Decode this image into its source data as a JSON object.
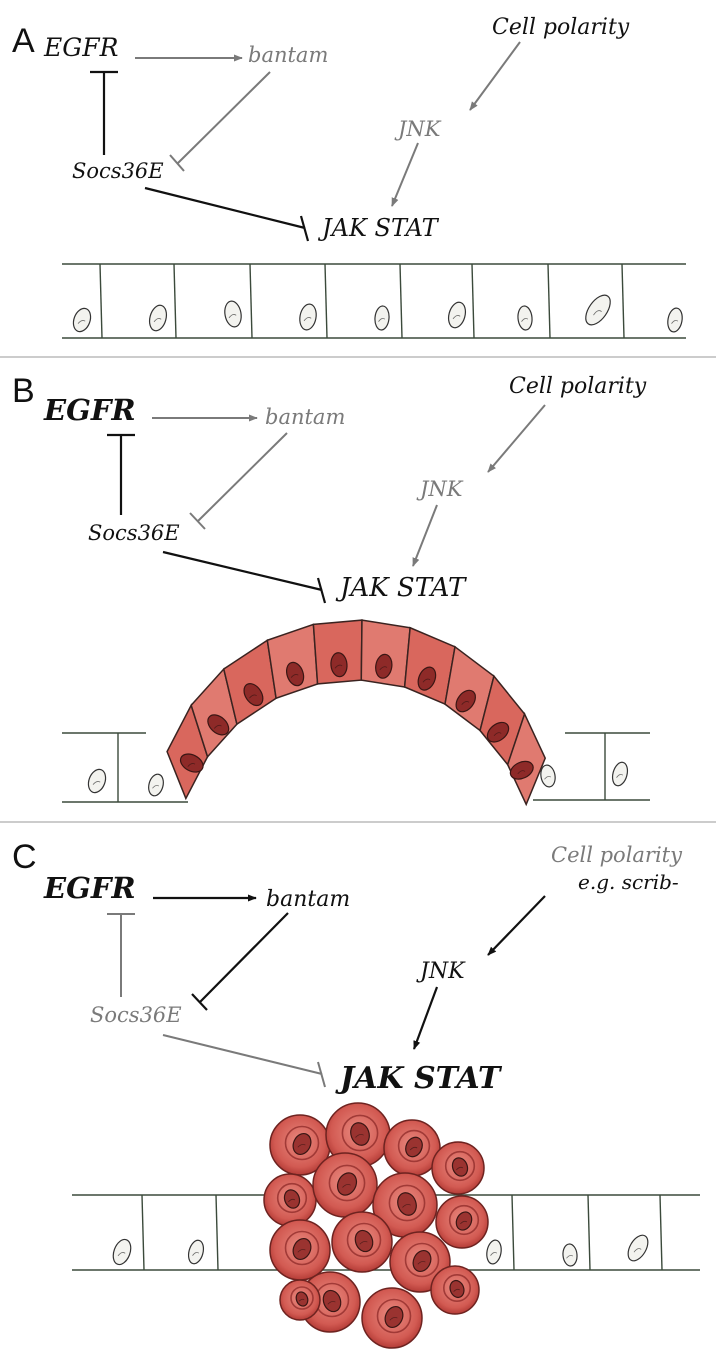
{
  "panels": [
    {
      "letter": "A",
      "nodes": {
        "egfr": "EGFR",
        "bantam": "bantam",
        "socs": "Socs36E",
        "jakstat": "JAK STAT",
        "polarity": "Cell polarity",
        "polarity_note": "",
        "jnk": "JNK"
      },
      "tissue_state": "normal epithelium"
    },
    {
      "letter": "B",
      "nodes": {
        "egfr": "EGFR",
        "bantam": "bantam",
        "socs": "Socs36E",
        "jakstat": "JAK STAT",
        "polarity": "Cell polarity",
        "polarity_note": "",
        "jnk": "JNK"
      },
      "tissue_state": "overgrowth (bent epithelium)"
    },
    {
      "letter": "C",
      "nodes": {
        "egfr": "EGFR",
        "bantam": "bantam",
        "socs": "Socs36E",
        "jakstat": "JAK STAT",
        "polarity": "Cell polarity",
        "polarity_note": "e.g. scrib-",
        "jnk": "JNK"
      },
      "tissue_state": "tumor (cell cluster)"
    }
  ],
  "colors": {
    "active": "#111111",
    "inactive": "#7a7a7a",
    "divider": "#9a9a9a",
    "cell_outline": "#3b4a3b",
    "tumor_fill": "#d8625a",
    "tumor_dark": "#8e2a28"
  }
}
